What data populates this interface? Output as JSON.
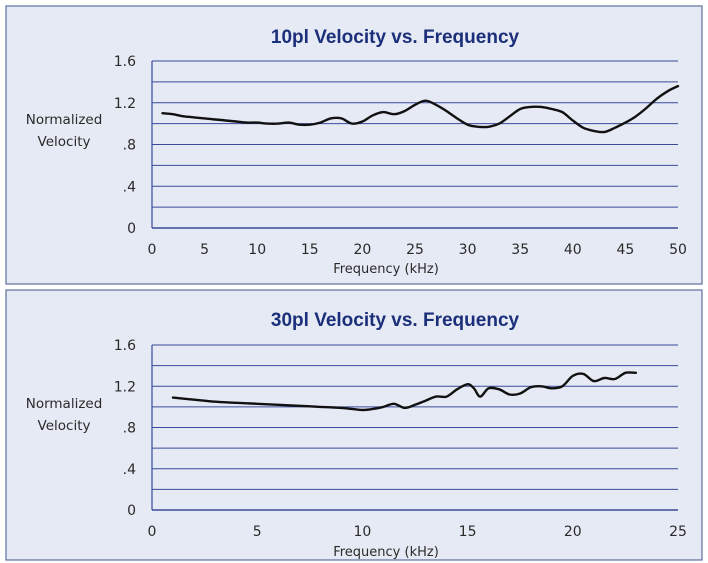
{
  "chart_data": [
    {
      "type": "line",
      "title": "10pl Velocity vs. Frequency",
      "xlabel": "Frequency (kHz)",
      "ylabel": [
        "Normalized",
        "Velocity"
      ],
      "xlim": [
        0,
        50
      ],
      "ylim": [
        0,
        1.6
      ],
      "xticks": [
        0,
        5,
        10,
        15,
        20,
        25,
        30,
        35,
        40,
        45,
        50
      ],
      "xtick_labels": [
        "0",
        "5",
        "10",
        "15",
        "20",
        "25",
        "30",
        "35",
        "40",
        "45",
        "50"
      ],
      "yticks": [
        0,
        0.4,
        0.8,
        1.2,
        1.6
      ],
      "ytick_labels": [
        "0",
        ".4",
        ".8",
        "1.2",
        "1.6"
      ],
      "grid_y_step": 0.2,
      "line_color": "#111111",
      "grid_color": "#3a4a9a",
      "series": [
        {
          "x": [
            1,
            2,
            3,
            4,
            5,
            6,
            7,
            8,
            9,
            10,
            11,
            12,
            13,
            14,
            15,
            16,
            17,
            18,
            19,
            20,
            21,
            22,
            23,
            24,
            25,
            26,
            27,
            28,
            29,
            30,
            31,
            32,
            33,
            34,
            35,
            36,
            37,
            38,
            39,
            40,
            41,
            42,
            43,
            44,
            45,
            46,
            47,
            48,
            49,
            50
          ],
          "y": [
            1.1,
            1.09,
            1.07,
            1.06,
            1.05,
            1.04,
            1.03,
            1.02,
            1.01,
            1.01,
            1.0,
            1.0,
            1.01,
            0.99,
            0.99,
            1.01,
            1.05,
            1.05,
            1.0,
            1.02,
            1.08,
            1.11,
            1.09,
            1.12,
            1.18,
            1.22,
            1.18,
            1.12,
            1.05,
            0.99,
            0.97,
            0.97,
            1.0,
            1.07,
            1.14,
            1.16,
            1.16,
            1.14,
            1.11,
            1.03,
            0.96,
            0.93,
            0.92,
            0.96,
            1.01,
            1.07,
            1.15,
            1.24,
            1.31,
            1.36
          ]
        }
      ]
    },
    {
      "type": "line",
      "title": "30pl Velocity vs. Frequency",
      "xlabel": "Frequency (kHz)",
      "ylabel": [
        "Normalized",
        "Velocity"
      ],
      "xlim": [
        0,
        25
      ],
      "ylim": [
        0,
        1.6
      ],
      "xticks": [
        0,
        5,
        10,
        15,
        20,
        25
      ],
      "xtick_labels": [
        "0",
        "5",
        "10",
        "15",
        "20",
        "25"
      ],
      "yticks": [
        0,
        0.4,
        0.8,
        1.2,
        1.6
      ],
      "ytick_labels": [
        "0",
        ".4",
        ".8",
        "1.2",
        "1.6"
      ],
      "grid_y_step": 0.2,
      "line_color": "#111111",
      "grid_color": "#3a4a9a",
      "series": [
        {
          "x": [
            1,
            2,
            3,
            4,
            5,
            6,
            7,
            8,
            9,
            9.5,
            10,
            10.5,
            11,
            11.5,
            12,
            12.5,
            13,
            13.5,
            14,
            14.5,
            15,
            15.3,
            15.6,
            16,
            16.5,
            17,
            17.5,
            18,
            18.5,
            19,
            19.5,
            20,
            20.5,
            21,
            21.5,
            22,
            22.5,
            23
          ],
          "y": [
            1.09,
            1.07,
            1.05,
            1.04,
            1.03,
            1.02,
            1.01,
            1.0,
            0.99,
            0.98,
            0.97,
            0.98,
            1.0,
            1.03,
            0.99,
            1.02,
            1.06,
            1.1,
            1.1,
            1.17,
            1.22,
            1.18,
            1.1,
            1.18,
            1.17,
            1.12,
            1.13,
            1.19,
            1.2,
            1.18,
            1.2,
            1.3,
            1.32,
            1.25,
            1.28,
            1.27,
            1.33,
            1.33
          ]
        }
      ]
    }
  ]
}
